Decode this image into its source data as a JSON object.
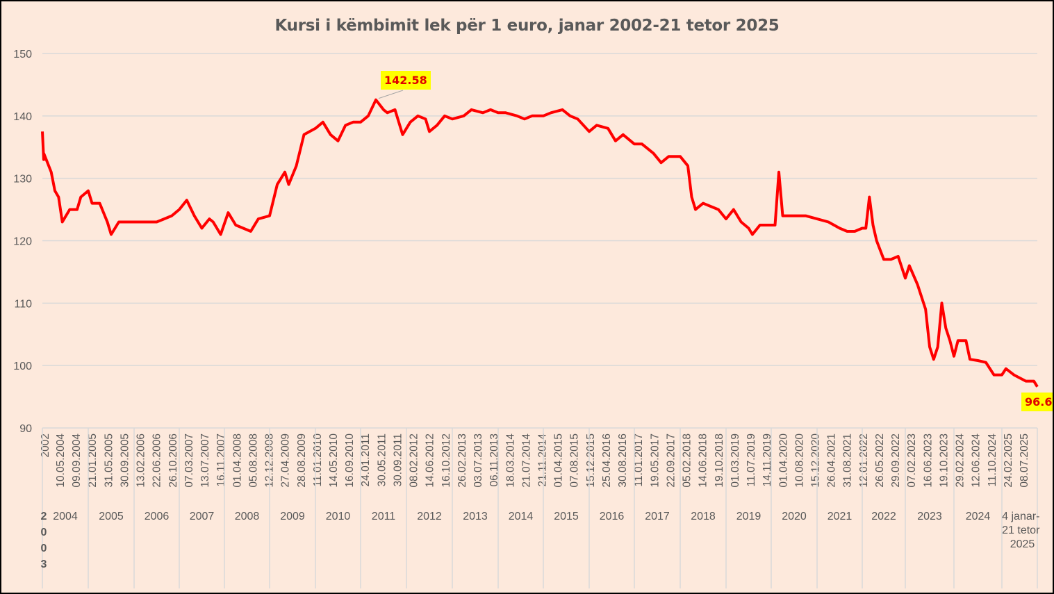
{
  "chart_data": {
    "type": "line",
    "title": "Kursi i këmbimit lek për 1 euro, janar 2002-21 tetor 2025",
    "xlabel": "",
    "ylabel": "",
    "ylim": [
      90,
      150
    ],
    "yticks": [
      90,
      100,
      110,
      120,
      130,
      140,
      150
    ],
    "grid": true,
    "legend": "none",
    "line_color": "#ff0000",
    "background_color": "#fde9dc",
    "x_tick_labels": [
      "2002",
      "10.05.2004",
      "09.09.2004",
      "21.01.2005",
      "31.05.2005",
      "30.09.2005",
      "13.02.2006",
      "22.06.2006",
      "26.10.2006",
      "07.03.2007",
      "13.07.2007",
      "16.11.2007",
      "01.04.2008",
      "05.08.2008",
      "12.12.2008",
      "27.04.2009",
      "28.08.2009",
      "11.01.2010",
      "14.05.2010",
      "16.09.2010",
      "24.01.2011",
      "30.05.2011",
      "30.09.2011",
      "08.02.2012",
      "14.06.2012",
      "16.10.2012",
      "26.02.2013",
      "03.07.2013",
      "06.11.2013",
      "18.03.2014",
      "21.07.2014",
      "21.11.2014",
      "01.04.2015",
      "07.08.2015",
      "15.12.2015",
      "25.04.2016",
      "30.08.2016",
      "11.01.2017",
      "19.05.2017",
      "22.09.2017",
      "05.02.2018",
      "14.06.2018",
      "19.10.2018",
      "01.03.2019",
      "11.07.2019",
      "14.11.2019",
      "01.04.2020",
      "10.08.2020",
      "15.12.2020",
      "26.04.2021",
      "31.08.2021",
      "12.01.2022",
      "26.05.2022",
      "29.09.2022",
      "07.02.2023",
      "16.06.2023",
      "19.10.2023",
      "29.02.2024",
      "12.06.2024",
      "11.10.2024",
      "24.02.2025",
      "08.07.2025"
    ],
    "x_group_labels": [
      "2003",
      "2004",
      "2005",
      "2006",
      "2007",
      "2008",
      "2009",
      "2010",
      "2011",
      "2012",
      "2013",
      "2014",
      "2015",
      "2016",
      "2017",
      "2018",
      "2019",
      "2020",
      "2021",
      "2022",
      "2023",
      "2024",
      "4 janar- 21 tetor 2025"
    ],
    "x": [
      "2002-01",
      "2003-12",
      "2004-01",
      "2004-03",
      "2004-04",
      "2004-05",
      "2004-06",
      "2004-08",
      "2004-10",
      "2004-11",
      "2005-01",
      "2005-02",
      "2005-04",
      "2005-06",
      "2005-07",
      "2005-09",
      "2005-11",
      "2006-01",
      "2006-03",
      "2006-05",
      "2006-07",
      "2006-09",
      "2006-11",
      "2007-01",
      "2007-03",
      "2007-05",
      "2007-07",
      "2007-09",
      "2007-10",
      "2007-12",
      "2008-02",
      "2008-04",
      "2008-06",
      "2008-08",
      "2008-10",
      "2009-01",
      "2009-03",
      "2009-05",
      "2009-06",
      "2009-08",
      "2009-10",
      "2010-01",
      "2010-03",
      "2010-05",
      "2010-07",
      "2010-09",
      "2010-11",
      "2011-01",
      "2011-03",
      "2011-05",
      "2011-07",
      "2011-08",
      "2011-10",
      "2011-12",
      "2012-02",
      "2012-04",
      "2012-06",
      "2012-07",
      "2012-09",
      "2012-11",
      "2013-01",
      "2013-04",
      "2013-06",
      "2013-09",
      "2013-11",
      "2014-01",
      "2014-03",
      "2014-06",
      "2014-08",
      "2014-10",
      "2015-01",
      "2015-03",
      "2015-06",
      "2015-08",
      "2015-10",
      "2016-01",
      "2016-03",
      "2016-06",
      "2016-08",
      "2016-10",
      "2017-01",
      "2017-03",
      "2017-06",
      "2017-08",
      "2017-10",
      "2017-11",
      "2018-01",
      "2018-03",
      "2018-04",
      "2018-05",
      "2018-07",
      "2018-09",
      "2018-11",
      "2019-01",
      "2019-03",
      "2019-05",
      "2019-07",
      "2019-08",
      "2019-10",
      "2020-01",
      "2020-02",
      "2020-03",
      "2020-04",
      "2020-06",
      "2020-10",
      "2021-01",
      "2021-04",
      "2021-07",
      "2021-09",
      "2021-11",
      "2022-01",
      "2022-02",
      "2022-03",
      "2022-04",
      "2022-05",
      "2022-07",
      "2022-09",
      "2022-11",
      "2023-01",
      "2023-02",
      "2023-04",
      "2023-06",
      "2023-07",
      "2023-08",
      "2023-09",
      "2023-10",
      "2023-11",
      "2023-12",
      "2024-01",
      "2024-02",
      "2024-04",
      "2024-05",
      "2024-07",
      "2024-09",
      "2024-11",
      "2025-01",
      "2025-02",
      "2025-04",
      "2025-07",
      "2025-09",
      "2025-10"
    ],
    "series": [
      {
        "values": [
          137.5,
          133,
          134,
          131,
          128,
          127,
          123,
          125,
          125,
          127,
          128,
          126,
          126,
          123,
          121,
          123,
          123,
          123,
          123,
          123,
          123,
          123.5,
          124,
          125,
          126.5,
          124,
          122,
          123.5,
          123,
          121,
          124.5,
          122.5,
          122,
          121.5,
          123.5,
          124,
          129,
          131,
          129,
          132,
          137,
          138,
          139,
          137,
          136,
          138.5,
          139,
          139,
          140,
          142.58,
          141,
          140.5,
          141,
          137,
          139,
          140,
          139.5,
          137.5,
          138.5,
          140,
          139.5,
          140,
          141,
          140.5,
          141,
          140.5,
          140.5,
          140,
          139.5,
          140,
          140,
          140.5,
          141,
          140,
          139.5,
          137.5,
          138.5,
          138,
          136,
          137,
          135.5,
          135.5,
          134,
          132.5,
          133.5,
          133.5,
          133.5,
          132,
          127,
          125,
          126,
          125.5,
          125,
          123.5,
          125,
          123,
          122,
          121,
          122.5,
          122.5,
          122.5,
          131,
          124,
          124,
          124,
          123.5,
          123,
          122,
          121.5,
          121.5,
          122,
          122,
          127,
          122.5,
          120,
          117,
          117,
          117.5,
          114,
          116,
          113,
          109,
          103,
          101,
          103,
          110,
          106,
          104,
          101.5,
          104,
          104,
          101,
          100.8,
          100.5,
          98.5,
          98.5,
          99.5,
          98.5,
          97.5,
          97.5,
          96.6
        ]
      }
    ],
    "annotations": [
      {
        "label": "142.58",
        "x": "2011-05",
        "y": 142.58
      },
      {
        "label": "96.6",
        "x": "2025-10",
        "y": 96.6
      }
    ]
  }
}
